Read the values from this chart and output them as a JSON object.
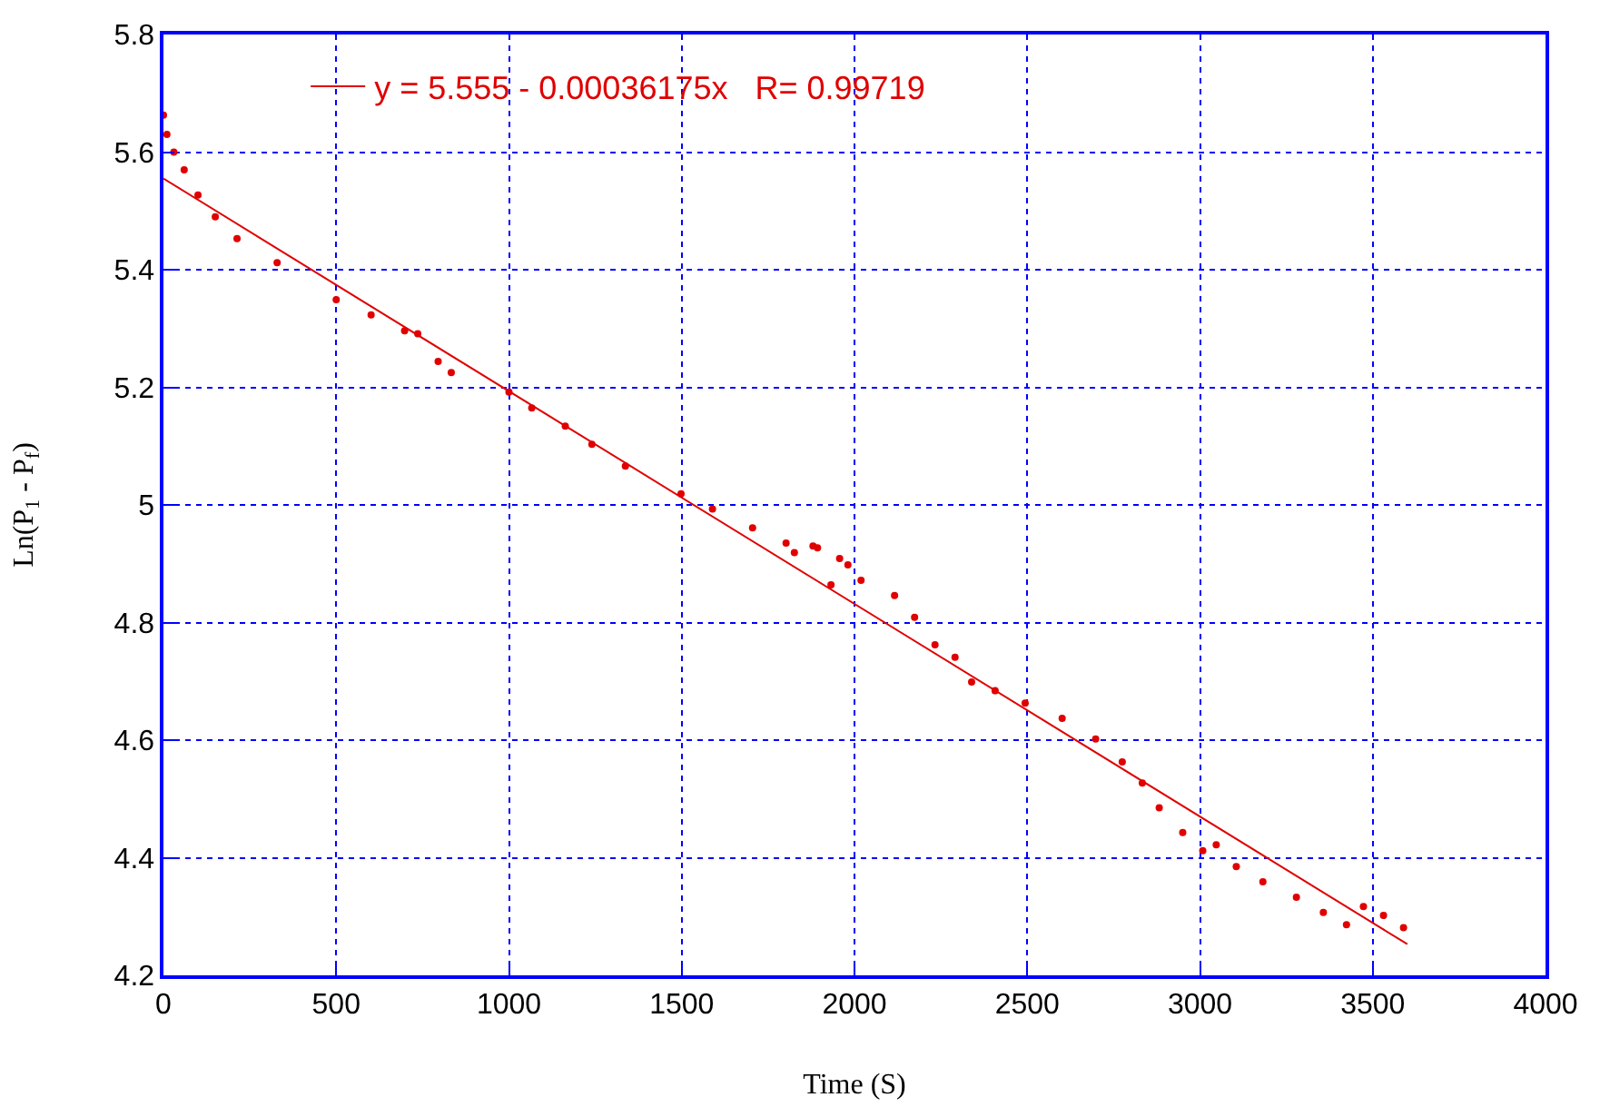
{
  "chart_data": {
    "type": "scatter",
    "xlabel": "Time (S)",
    "ylabel": "Ln(P$_{1}$ - P$_{f}$)",
    "xlim": [
      0,
      4000
    ],
    "xticks": [
      0,
      500,
      1000,
      1500,
      2000,
      2500,
      3000,
      3500,
      4000
    ],
    "ylim": [
      4.2,
      5.8
    ],
    "yticks": [
      4.2,
      4.4,
      4.6,
      4.8,
      5,
      5.2,
      5.4,
      5.6,
      5.8
    ],
    "grid": true,
    "legend": "top",
    "series": [
      {
        "marker": "circle",
        "color": "#e00000",
        "x": [
          0,
          10,
          30,
          60,
          100,
          150,
          213,
          329,
          500,
          601,
          698,
          736,
          795,
          833,
          1000,
          1066,
          1163,
          1240,
          1337,
          1498,
          1589,
          1705,
          1802,
          1826,
          1880,
          1893,
          1932,
          1957,
          1981,
          2019,
          2116,
          2174,
          2233,
          2291,
          2339,
          2407,
          2494,
          2601,
          2698,
          2775,
          2833,
          2882,
          2950,
          3008,
          3047,
          3105,
          3182,
          3279,
          3357,
          3424,
          3473,
          3531,
          3589
        ],
        "values": [
          5.663,
          5.63,
          5.6,
          5.57,
          5.527,
          5.49,
          5.453,
          5.412,
          5.349,
          5.323,
          5.296,
          5.291,
          5.244,
          5.225,
          5.192,
          5.165,
          5.134,
          5.103,
          5.066,
          5.019,
          4.993,
          4.961,
          4.935,
          4.919,
          4.93,
          4.927,
          4.864,
          4.909,
          4.898,
          4.872,
          4.846,
          4.809,
          4.762,
          4.741,
          4.699,
          4.684,
          4.663,
          4.637,
          4.602,
          4.563,
          4.527,
          4.485,
          4.443,
          4.412,
          4.422,
          4.385,
          4.359,
          4.333,
          4.307,
          4.286,
          4.317,
          4.302,
          4.281
        ]
      },
      {
        "type": "line",
        "name": "y = 5.555 - 0.00036175x   R= 0.99719",
        "color": "#e00000",
        "x": [
          0,
          3600
        ],
        "values": [
          5.555,
          4.253
        ]
      }
    ]
  }
}
